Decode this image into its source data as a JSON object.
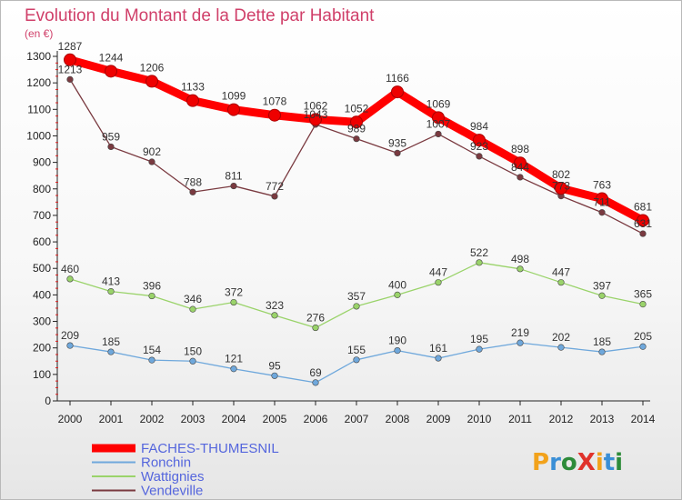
{
  "chart_data": {
    "type": "line",
    "title": "Evolution du Montant de la Dette par Habitant",
    "unit_label": "(en €)",
    "x": [
      "2000",
      "2001",
      "2002",
      "2003",
      "2004",
      "2005",
      "2006",
      "2007",
      "2008",
      "2009",
      "2010",
      "2011",
      "2012",
      "2013",
      "2014"
    ],
    "ylim": [
      0,
      1300
    ],
    "yticks": [
      0,
      100,
      200,
      300,
      400,
      500,
      600,
      700,
      800,
      900,
      1000,
      1100,
      1200,
      1300
    ],
    "grid": false,
    "legend_position": "bottom-left",
    "series": [
      {
        "name": "FACHES-THUMESNIL",
        "color": "#ff0000",
        "values": [
          1287,
          1244,
          1206,
          1133,
          1099,
          1078,
          1062,
          1052,
          1166,
          1069,
          984,
          898,
          802,
          763,
          681
        ]
      },
      {
        "name": "Ronchin",
        "color": "#6fa8dc",
        "values": [
          209,
          185,
          154,
          150,
          121,
          95,
          69,
          155,
          190,
          161,
          195,
          219,
          202,
          185,
          205
        ]
      },
      {
        "name": "Wattignies",
        "color": "#9ad36a",
        "values": [
          460,
          413,
          396,
          346,
          372,
          323,
          276,
          357,
          400,
          447,
          522,
          498,
          447,
          397,
          365
        ]
      },
      {
        "name": "Vendeville",
        "color": "#7a3a40",
        "values": [
          1213,
          959,
          902,
          788,
          811,
          772,
          1043,
          989,
          935,
          1007,
          923,
          844,
          773,
          711,
          631
        ]
      }
    ]
  },
  "logo_text": "ProXiti"
}
